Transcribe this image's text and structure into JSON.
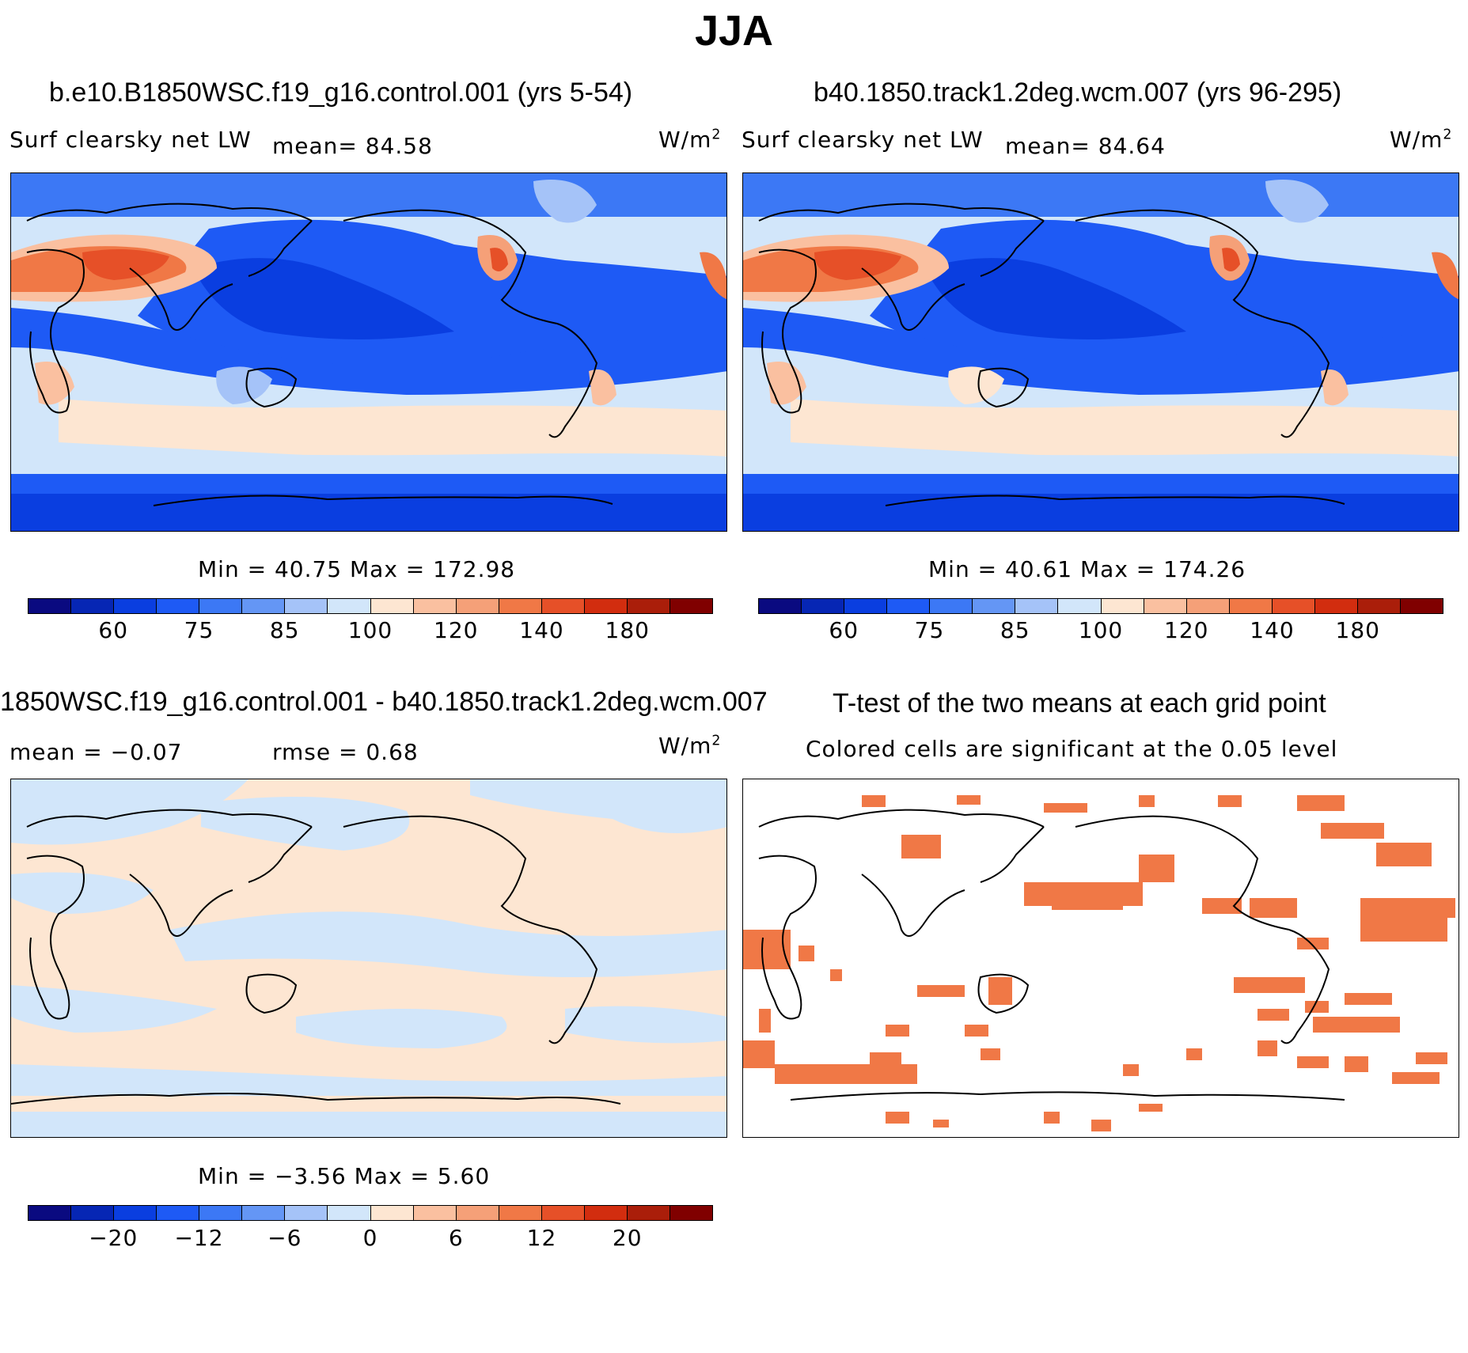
{
  "title": "JJA",
  "panels": {
    "top_left": {
      "case": "b.e10.B1850WSC.f19_g16.control.001 (yrs 5-54)",
      "variable": "Surf  clearsky  net  LW",
      "mean_text": "mean=   84.58",
      "units": "W/m",
      "units_sup": "2",
      "stats": "Min  =   40.75  Max  =  172.98"
    },
    "top_right": {
      "case": "b40.1850.track1.2deg.wcm.007 (yrs 96-295)",
      "variable": "Surf  clearsky  net  LW",
      "mean_text": "mean=   84.64",
      "units": "W/m",
      "units_sup": "2",
      "stats": "Min  =   40.61  Max  =  174.26"
    },
    "bottom_left": {
      "case": "1850WSC.f19_g16.control.001 - b40.1850.track1.2deg.wcm.007",
      "mean_text": "mean  =   −0.07",
      "rmse_text": "rmse  =     0.68",
      "units": "W/m",
      "units_sup": "2",
      "stats": "Min  =   −3.56  Max  =     5.60"
    },
    "bottom_right": {
      "case": "T-test of the two means at each grid point",
      "subtitle": "Colored cells are significant at the 0.05 level"
    }
  },
  "colorbars": {
    "absolute": {
      "labels": [
        "60",
        "75",
        "85",
        "100",
        "120",
        "140",
        "180"
      ],
      "colors": [
        "#0a0a80",
        "#0626b4",
        "#0a3ee0",
        "#1e5af5",
        "#3c78f5",
        "#6496f5",
        "#a5c3f8",
        "#d2e6fa",
        "#fde6d2",
        "#fac0a0",
        "#f5a078",
        "#f07846",
        "#e65028",
        "#d22d0f",
        "#aa1e0a",
        "#800000"
      ]
    },
    "difference": {
      "labels": [
        "−20",
        "−12",
        "−6",
        "0",
        "6",
        "12",
        "20"
      ],
      "colors": [
        "#0a0a80",
        "#0626b4",
        "#0a3ee0",
        "#1e5af5",
        "#3c78f5",
        "#6496f5",
        "#a5c3f8",
        "#d2e6fa",
        "#fde6d2",
        "#fac0a0",
        "#f5a078",
        "#f07846",
        "#e65028",
        "#d22d0f",
        "#aa1e0a",
        "#800000"
      ]
    }
  },
  "ttest_color": "#f07846"
}
